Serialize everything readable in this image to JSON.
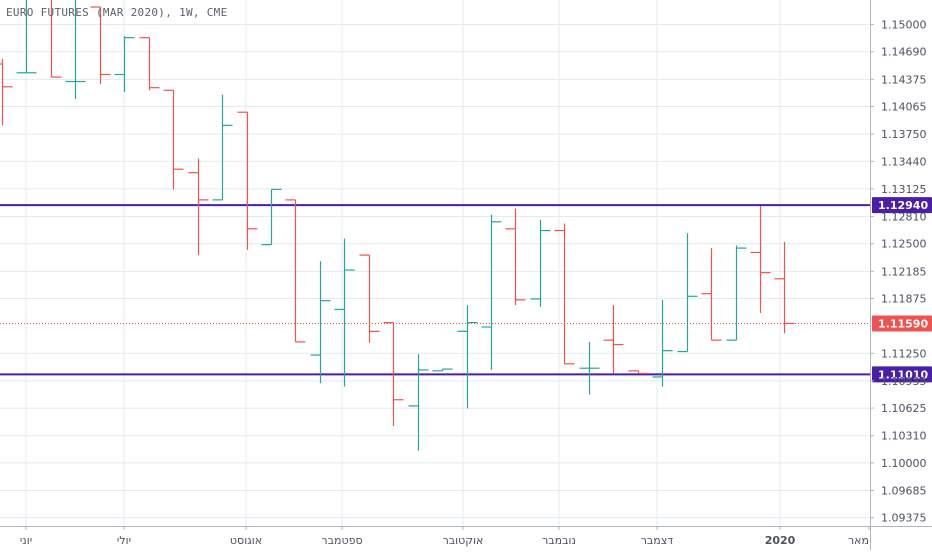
{
  "title": "EURO FUTURES (MAR 2020), 1W, CME",
  "colors": {
    "up": "#26a69a",
    "down": "#ef5350",
    "level_line": "#4a1fa8",
    "last_price": "#ef5350",
    "grid": "#e1ecf2",
    "axis_text": "#4c525e",
    "background": "#ffffff"
  },
  "chart_data": {
    "type": "ohlc-bar",
    "timeframe": "1W",
    "y_axis": {
      "ticks": [
        1.15,
        1.1469,
        1.14375,
        1.14065,
        1.1375,
        1.1344,
        1.13125,
        1.1281,
        1.125,
        1.12185,
        1.11875,
        1.1125,
        1.10935,
        1.10625,
        1.1031,
        1.1,
        1.09685,
        1.09375
      ],
      "tick_labels": [
        "1.15000",
        "1.14690",
        "1.14375",
        "1.14065",
        "1.13750",
        "1.13440",
        "1.13125",
        "1.12810",
        "1.12500",
        "1.12185",
        "1.11875",
        "1.11250",
        "1.10935",
        "1.10625",
        "1.10310",
        "1.10000",
        "1.09685",
        "1.09375"
      ],
      "ylim": [
        1.0928,
        1.1528
      ]
    },
    "x_axis": {
      "tick_labels": [
        "יוני",
        "יולי",
        "אוגוסט",
        "ספטמבר",
        "אוקטובר",
        "נובמבר",
        "דצמבר",
        "2020",
        "מאר"
      ]
    },
    "bars": [
      {
        "o": 1.1455,
        "h": 1.1461,
        "l": 1.1385,
        "c": 1.1429
      },
      {
        "o": 1.1445,
        "h": 1.154,
        "l": 1.1445,
        "c": 1.1445
      },
      {
        "o": 1.154,
        "h": 1.154,
        "l": 1.144,
        "c": 1.144
      },
      {
        "o": 1.1435,
        "h": 1.154,
        "l": 1.1415,
        "c": 1.1435
      },
      {
        "o": 1.152,
        "h": 1.152,
        "l": 1.1432,
        "c": 1.1443
      },
      {
        "o": 1.1443,
        "h": 1.1487,
        "l": 1.1423,
        "c": 1.1485
      },
      {
        "o": 1.1485,
        "h": 1.1485,
        "l": 1.1425,
        "c": 1.1428
      },
      {
        "o": 1.1425,
        "h": 1.1425,
        "l": 1.1312,
        "c": 1.1335
      },
      {
        "o": 1.1331,
        "h": 1.1347,
        "l": 1.1237,
        "c": 1.13
      },
      {
        "o": 1.13,
        "h": 1.142,
        "l": 1.13,
        "c": 1.1385
      },
      {
        "o": 1.14,
        "h": 1.14,
        "l": 1.1243,
        "c": 1.1267
      },
      {
        "o": 1.1249,
        "h": 1.1312,
        "l": 1.1249,
        "c": 1.1312
      },
      {
        "o": 1.13,
        "h": 1.13,
        "l": 1.114,
        "c": 1.1138
      },
      {
        "o": 1.1123,
        "h": 1.123,
        "l": 1.1091,
        "c": 1.1185
      },
      {
        "o": 1.1175,
        "h": 1.1256,
        "l": 1.1087,
        "c": 1.122
      },
      {
        "o": 1.1237,
        "h": 1.1237,
        "l": 1.1137,
        "c": 1.115
      },
      {
        "o": 1.116,
        "h": 1.116,
        "l": 1.1042,
        "c": 1.1072
      },
      {
        "o": 1.1065,
        "h": 1.1124,
        "l": 1.1014,
        "c": 1.1106
      },
      {
        "o": 1.1105,
        "h": 1.1105,
        "l": 1.1107,
        "c": 1.1107
      },
      {
        "o": 1.115,
        "h": 1.118,
        "l": 1.1062,
        "c": 1.116
      },
      {
        "o": 1.1155,
        "h": 1.1283,
        "l": 1.1106,
        "c": 1.1275
      },
      {
        "o": 1.1267,
        "h": 1.129,
        "l": 1.118,
        "c": 1.1186
      },
      {
        "o": 1.1187,
        "h": 1.1277,
        "l": 1.1178,
        "c": 1.1265
      },
      {
        "o": 1.1265,
        "h": 1.1273,
        "l": 1.1113,
        "c": 1.1113
      },
      {
        "o": 1.1108,
        "h": 1.1138,
        "l": 1.1078,
        "c": 1.1108
      },
      {
        "o": 1.114,
        "h": 1.118,
        "l": 1.1102,
        "c": 1.1135
      },
      {
        "o": 1.1105,
        "h": 1.1105,
        "l": 1.1102,
        "c": 1.1102
      },
      {
        "o": 1.1098,
        "h": 1.1186,
        "l": 1.1087,
        "c": 1.1128
      },
      {
        "o": 1.1127,
        "h": 1.1262,
        "l": 1.1127,
        "c": 1.119
      },
      {
        "o": 1.1193,
        "h": 1.1245,
        "l": 1.114,
        "c": 1.114
      },
      {
        "o": 1.114,
        "h": 1.1248,
        "l": 1.114,
        "c": 1.1245
      },
      {
        "o": 1.124,
        "h": 1.1293,
        "l": 1.1171,
        "c": 1.1217
      },
      {
        "o": 1.121,
        "h": 1.1252,
        "l": 1.1148,
        "c": 1.1159
      }
    ],
    "horizontal_levels": [
      {
        "value": 1.1294,
        "label": "1.12940"
      },
      {
        "value": 1.1101,
        "label": "1.11010"
      }
    ],
    "last_price": {
      "value": 1.1159,
      "label": "1.11590"
    }
  }
}
